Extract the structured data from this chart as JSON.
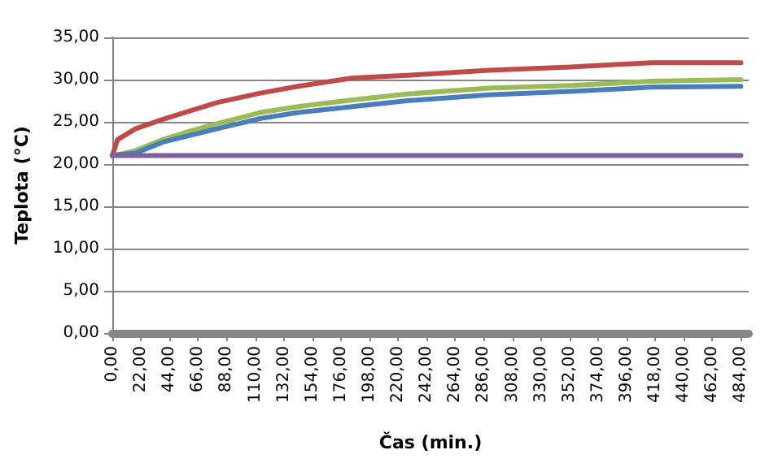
{
  "chart_data": {
    "type": "line",
    "xlabel": "Čas (min.)",
    "ylabel": "Teplota (°C)",
    "xlim": [
      0,
      490
    ],
    "xticks": [
      {
        "value": 0,
        "label": "0,00"
      },
      {
        "value": 22,
        "label": "22,00"
      },
      {
        "value": 44,
        "label": "44,00"
      },
      {
        "value": 66,
        "label": "66,00"
      },
      {
        "value": 88,
        "label": "88,00"
      },
      {
        "value": 110,
        "label": "110,00"
      },
      {
        "value": 132,
        "label": "132,00"
      },
      {
        "value": 154,
        "label": "154,00"
      },
      {
        "value": 176,
        "label": "176,00"
      },
      {
        "value": 198,
        "label": "198,00"
      },
      {
        "value": 220,
        "label": "220,00"
      },
      {
        "value": 242,
        "label": "242,00"
      },
      {
        "value": 264,
        "label": "264,00"
      },
      {
        "value": 286,
        "label": "286,00"
      },
      {
        "value": 308,
        "label": "308,00"
      },
      {
        "value": 330,
        "label": "330,00"
      },
      {
        "value": 352,
        "label": "352,00"
      },
      {
        "value": 374,
        "label": "374,00"
      },
      {
        "value": 396,
        "label": "396,00"
      },
      {
        "value": 418,
        "label": "418,00"
      },
      {
        "value": 440,
        "label": "440,00"
      },
      {
        "value": 462,
        "label": "462,00"
      },
      {
        "value": 484,
        "label": "484,00"
      }
    ],
    "ylim": [
      0,
      35
    ],
    "yticks": [
      {
        "value": 0,
        "label": "0,00"
      },
      {
        "value": 5,
        "label": "5,00"
      },
      {
        "value": 10,
        "label": "10,00"
      },
      {
        "value": 15,
        "label": "15,00"
      },
      {
        "value": 20,
        "label": "20,00"
      },
      {
        "value": 25,
        "label": "25,00"
      },
      {
        "value": 30,
        "label": "30,00"
      },
      {
        "value": 35,
        "label": "35,00"
      }
    ],
    "grid": "y",
    "marker": "none",
    "line_style": "solid",
    "x": [
      0,
      4,
      18,
      39,
      60,
      81,
      114,
      143,
      185,
      227,
      290,
      353,
      415,
      484
    ],
    "series": [
      {
        "color": "#be4b48",
        "values": [
          21,
          22.9,
          24.2,
          25.3,
          26.3,
          27.3,
          28.4,
          29.2,
          30.2,
          30.5,
          31.1,
          31.5,
          32,
          32
        ]
      },
      {
        "color": "#9bbb59",
        "values": [
          21,
          21.1,
          21.6,
          22.9,
          23.9,
          24.8,
          26.1,
          26.8,
          27.6,
          28.3,
          29,
          29.3,
          29.8,
          30
        ]
      },
      {
        "color": "#4a7ebb",
        "values": [
          21,
          21.1,
          21.3,
          22.6,
          23.4,
          24.2,
          25.4,
          26.1,
          26.8,
          27.5,
          28.2,
          28.6,
          29.1,
          29.2
        ]
      },
      {
        "color": "#7d60a0",
        "values": [
          21,
          21,
          21,
          21,
          21,
          21,
          21,
          21,
          21,
          21,
          21,
          21,
          21,
          21
        ]
      }
    ]
  }
}
